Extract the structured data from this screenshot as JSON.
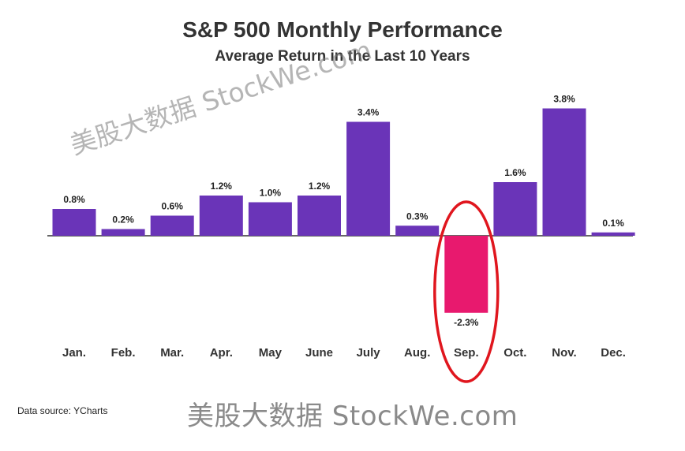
{
  "header": {
    "title": "S&P 500 Monthly Performance",
    "subtitle": "Average Return in the Last 10 Years"
  },
  "footer": {
    "source": "Data source: YCharts"
  },
  "watermarks": {
    "diagonal": "美股大数据 StockWe.com",
    "bottom": "美股大数据 StockWe.com"
  },
  "colors": {
    "positive": "#6a34b8",
    "negative": "#e8196e",
    "highlight_circle": "#e0161e",
    "baseline": "#333333"
  },
  "chart_data": {
    "type": "bar",
    "title": "S&P 500 Monthly Performance",
    "subtitle": "Average Return in the Last 10 Years",
    "categories": [
      "Jan.",
      "Feb.",
      "Mar.",
      "Apr.",
      "May",
      "June",
      "July",
      "Aug.",
      "Sep.",
      "Oct.",
      "Nov.",
      "Dec."
    ],
    "values": [
      0.8,
      0.2,
      0.6,
      1.2,
      1.0,
      1.2,
      3.4,
      0.3,
      -2.3,
      1.6,
      3.8,
      0.1
    ],
    "labels": [
      "0.8%",
      "0.2%",
      "0.6%",
      "1.2%",
      "1.0%",
      "1.2%",
      "3.4%",
      "0.3%",
      "-2.3%",
      "1.6%",
      "3.8%",
      "0.1%"
    ],
    "highlighted_category": "Sep.",
    "xlabel": "",
    "ylabel": "",
    "grid": false,
    "legend": "none"
  }
}
